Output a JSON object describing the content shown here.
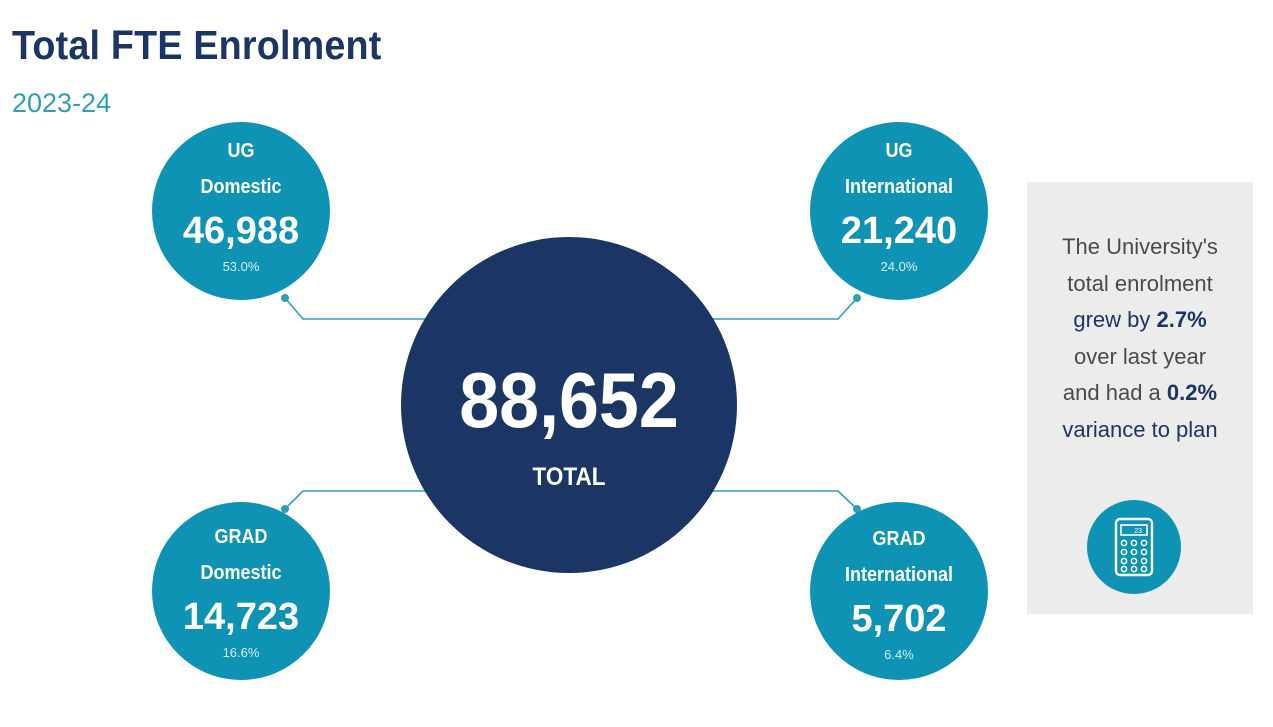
{
  "header": {
    "title": "Total FTE Enrolment",
    "subtitle": "2023-24"
  },
  "total": {
    "value": "88,652",
    "label": "TOTAL"
  },
  "segments": [
    {
      "line1": "UG",
      "line2": "Domestic",
      "value": "46,988",
      "percent": "53.0%"
    },
    {
      "line1": "UG",
      "line2": "International",
      "value": "21,240",
      "percent": "24.0%"
    },
    {
      "line1": "GRAD",
      "line2": "Domestic",
      "value": "14,723",
      "percent": "16.6%"
    },
    {
      "line1": "GRAD",
      "line2": "International",
      "value": "5,702",
      "percent": "6.4%"
    }
  ],
  "note": {
    "line1": "The University's",
    "line2": "total enrolment",
    "line3_prefix": "grew by ",
    "line3_value": "2.7%",
    "line4": "over last year",
    "line5_prefix": "and had a ",
    "line5_value": "0.2%",
    "line6": "variance to plan",
    "icon": "calculator-icon",
    "calculator_display": "23"
  },
  "colors": {
    "title": "#1b3564",
    "subtitle": "#2f9fb5",
    "bubble": "#0f93b5",
    "center": "#1b3564",
    "note_bg": "#ececec"
  }
}
